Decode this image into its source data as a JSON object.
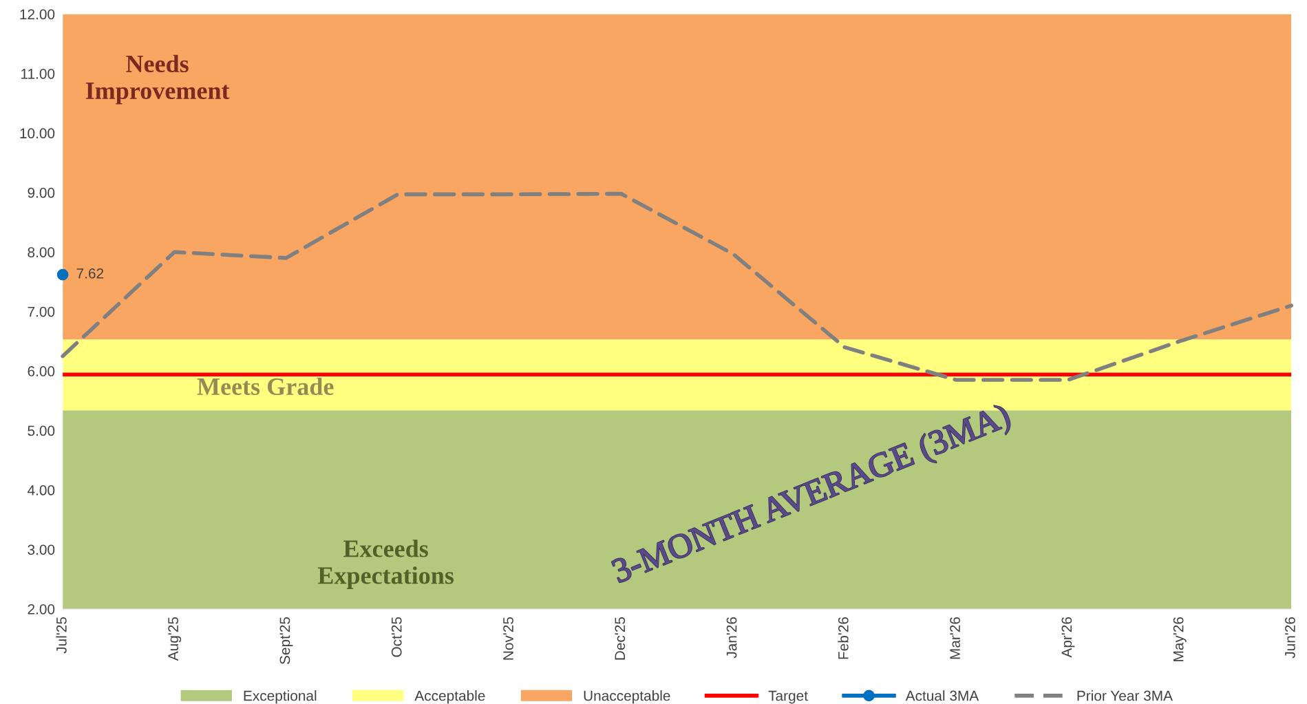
{
  "chart_data": {
    "type": "line",
    "categories": [
      "Jul'25",
      "Aug'25",
      "Sept'25",
      "Oct'25",
      "Nov'25",
      "Dec'25",
      "Jan'26",
      "Feb'26",
      "Mar'26",
      "Apr'26",
      "May'26",
      "Jun'26"
    ],
    "series": [
      {
        "name": "Actual 3MA",
        "color": "#0070c0",
        "marker": "circle",
        "line_style": "solid",
        "values": [
          7.62,
          null,
          null,
          null,
          null,
          null,
          null,
          null,
          null,
          null,
          null,
          null
        ],
        "value_labels": [
          "7.62",
          null,
          null,
          null,
          null,
          null,
          null,
          null,
          null,
          null,
          null,
          null
        ]
      },
      {
        "name": "Prior Year 3MA",
        "color": "#808080",
        "marker": "none",
        "line_style": "dashed",
        "values": [
          6.25,
          8.0,
          7.9,
          8.97,
          8.97,
          8.98,
          7.97,
          6.4,
          5.85,
          5.85,
          6.5,
          7.1
        ]
      }
    ],
    "bands": [
      {
        "axis": "y",
        "from": 2.0,
        "to": 5.34,
        "label": "Exceptional",
        "color": "#b2c97e"
      },
      {
        "axis": "y",
        "from": 5.34,
        "to": 6.53,
        "label": "Acceptable",
        "color": "#ffff80"
      },
      {
        "axis": "y",
        "from": 6.53,
        "to": 12.0,
        "label": "Unacceptable",
        "color": "#f8a662"
      }
    ],
    "ref_lines": [
      {
        "axis": "y",
        "value": 5.94,
        "label": "Target",
        "color": "#ff0000",
        "line_style": "solid"
      }
    ],
    "ylim": [
      2.0,
      12.0
    ],
    "yticks": [
      {
        "value": 2,
        "label": "2.00"
      },
      {
        "value": 3,
        "label": "3.00"
      },
      {
        "value": 4,
        "label": "4.00"
      },
      {
        "value": 5,
        "label": "5.00"
      },
      {
        "value": 6,
        "label": "6.00"
      },
      {
        "value": 7,
        "label": "7.00"
      },
      {
        "value": 8,
        "label": "8.00"
      },
      {
        "value": 9,
        "label": "9.00"
      },
      {
        "value": 10,
        "label": "10.00"
      },
      {
        "value": 11,
        "label": "11.00"
      },
      {
        "value": 12,
        "label": "12.00"
      }
    ],
    "annotations": [
      "Needs\nImprovement",
      "Meets Grade",
      "Exceeds\nExpectations",
      "3-MONTH AVERAGE (3MA)"
    ],
    "legend": "bottom",
    "grid": false
  }
}
